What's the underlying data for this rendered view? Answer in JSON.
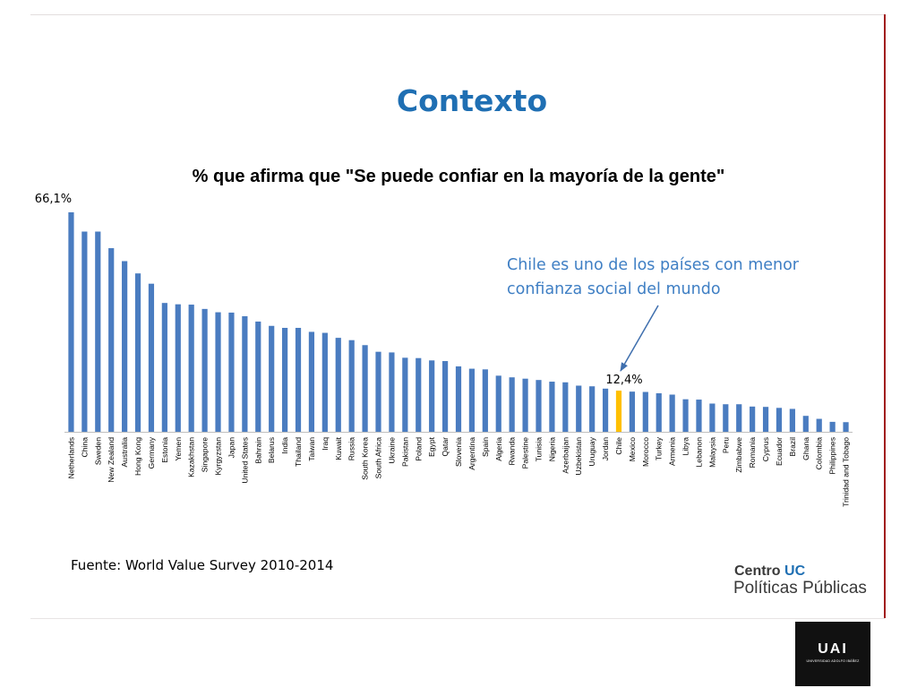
{
  "slide_title": "Contexto",
  "annotation": "Chile es uno de los países con menor confianza social del mundo",
  "source": "Fuente: World Value Survey 2010-2014",
  "logo": {
    "centro": "Centro",
    "uc": "UC",
    "sub": "Políticas Públicas",
    "uai_mark": "UAI",
    "uai_name": "UNIVERSIDAD ADOLFO IBÁÑEZ"
  },
  "colors": {
    "bar": "#4a7cc0",
    "highlight": "#ffc000",
    "title": "#1f6fb3",
    "annotation": "#3f7fc4",
    "accent_line": "#a11b1b"
  },
  "chart_data": {
    "type": "bar",
    "title": "% que afirma que \"Se puede confiar en la mayoría de la gente\"",
    "xlabel": "",
    "ylabel": "",
    "ylim": [
      0,
      66.1
    ],
    "grid": false,
    "legend": "none",
    "highlight": "Chile",
    "categories": [
      "Netherlands",
      "China",
      "Sweden",
      "New Zealand",
      "Australia",
      "Hong Kong",
      "Germany",
      "Estonia",
      "Yemen",
      "Kazakhstan",
      "Singapore",
      "Kyrgyzstan",
      "Japan",
      "United States",
      "Bahrain",
      "Belarus",
      "India",
      "Thailand",
      "Taiwan",
      "Iraq",
      "Kuwait",
      "Russia",
      "South Korea",
      "South Africa",
      "Ukraine",
      "Pakistan",
      "Poland",
      "Egypt",
      "Qatar",
      "Slovenia",
      "Argentina",
      "Spain",
      "Algeria",
      "Rwanda",
      "Palestine",
      "Tunisia",
      "Nigeria",
      "Azerbaijan",
      "Uzbekistan",
      "Uruguay",
      "Jordan",
      "Chile",
      "Mexico",
      "Morocco",
      "Turkey",
      "Armenia",
      "Libya",
      "Lebanon",
      "Malaysia",
      "Peru",
      "Zimbabwe",
      "Romania",
      "Cyprus",
      "Ecuador",
      "Brazil",
      "Ghana",
      "Colombia",
      "Philippines",
      "Trinidad and Tobago"
    ],
    "values": [
      66.1,
      60.3,
      60.3,
      55.3,
      51.4,
      47.7,
      44.6,
      38.8,
      38.4,
      38.3,
      37.0,
      36.0,
      35.9,
      34.8,
      33.2,
      31.9,
      31.3,
      31.3,
      30.1,
      29.8,
      28.3,
      27.6,
      26.1,
      24.1,
      23.9,
      22.3,
      22.2,
      21.5,
      21.3,
      19.7,
      19.0,
      18.8,
      16.9,
      16.4,
      16.0,
      15.6,
      15.1,
      14.9,
      13.9,
      13.7,
      13.0,
      12.4,
      12.1,
      12.0,
      11.6,
      11.2,
      9.8,
      9.7,
      8.5,
      8.3,
      8.3,
      7.6,
      7.5,
      7.2,
      6.9,
      4.8,
      3.9,
      3.0,
      2.9
    ],
    "data_labels": [
      {
        "category": "Netherlands",
        "text": "66,1%"
      },
      {
        "category": "Chile",
        "text": "12,4%"
      }
    ]
  }
}
